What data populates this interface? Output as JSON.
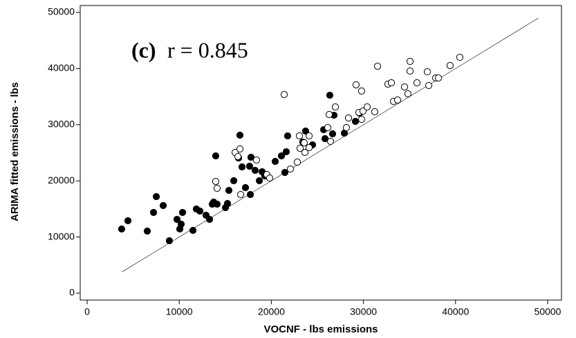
{
  "chart_data": {
    "type": "scatter",
    "x_label": "VOCNF - lbs emissions",
    "y_label": "ARIMA fitted emissions - lbs",
    "annotations": [
      "(c)",
      "r = 0.845"
    ],
    "reference_line": [
      3800,
      49000
    ],
    "xlim": [
      0,
      50000
    ],
    "ylim": [
      0,
      50000
    ],
    "xticks": [
      0,
      10000,
      20000,
      30000,
      40000,
      50000
    ],
    "yticks": [
      0,
      10000,
      20000,
      30000,
      40000,
      50000
    ],
    "grid": false,
    "series": [
      {
        "color": "#000000",
        "filled": true,
        "x": [
          3750,
          4430,
          6530,
          7210,
          7510,
          8260,
          8930,
          9760,
          10060,
          10210,
          10360,
          11490,
          11860,
          12240,
          12910,
          13290,
          13590,
          13740,
          13960,
          14110,
          15020,
          15240,
          15390,
          15920,
          16440,
          16590,
          16820,
          17190,
          17640,
          17720,
          17790,
          18240,
          18700,
          19000,
          19290,
          20420,
          21100,
          21470,
          21620,
          21770,
          23420,
          23720,
          24470,
          25680,
          25830,
          26350,
          26650,
          26800,
          27930,
          29130,
          29580
        ],
        "values": [
          11425,
          12900,
          11060,
          14370,
          17200,
          15600,
          9340,
          13140,
          11430,
          12290,
          14370,
          11180,
          14990,
          14620,
          13880,
          13140,
          15850,
          16220,
          24450,
          15850,
          15230,
          15970,
          18300,
          20020,
          24080,
          28130,
          22480,
          18800,
          22600,
          17570,
          24200,
          21870,
          20020,
          21620,
          20880,
          23460,
          24450,
          21500,
          25180,
          28010,
          26900,
          28870,
          26410,
          29110,
          27520,
          35250,
          28380,
          31690,
          28500,
          30590,
          32060
        ]
      },
      {
        "color": "#000000",
        "filled": false,
        "x": [
          13960,
          14110,
          16070,
          16370,
          16590,
          16670,
          18390,
          19520,
          19820,
          21400,
          22070,
          22820,
          23050,
          23120,
          23570,
          23650,
          24100,
          24100,
          26130,
          26280,
          26430,
          26950,
          28150,
          28380,
          29200,
          29500,
          29800,
          29800,
          29950,
          30400,
          31230,
          31530,
          32660,
          33030,
          33260,
          33710,
          34460,
          34830,
          35060,
          35060,
          35810,
          36940,
          37090,
          37840,
          38140,
          39410,
          40460
        ],
        "values": [
          19900,
          18670,
          25060,
          24320,
          25680,
          17570,
          23710,
          21130,
          20510,
          35380,
          22110,
          23340,
          28010,
          25800,
          26780,
          25060,
          25920,
          28010,
          29480,
          31820,
          27030,
          33170,
          29480,
          31200,
          37100,
          32190,
          30960,
          36000,
          32430,
          33170,
          32310,
          40420,
          37220,
          37470,
          34150,
          34400,
          36730,
          35500,
          41280,
          39560,
          37470,
          39430,
          36980,
          38330,
          38330,
          40540,
          42010
        ]
      }
    ]
  }
}
